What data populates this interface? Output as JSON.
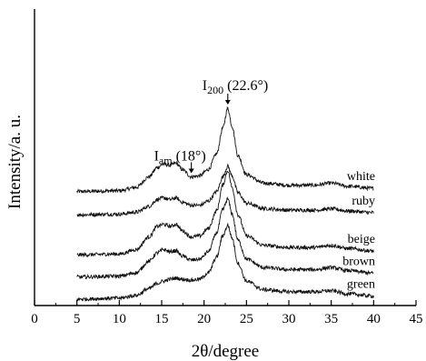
{
  "chart_data": {
    "type": "line",
    "title": "",
    "xlabel": "2θ/degree",
    "ylabel": "Intensity/a. u.",
    "xlim": [
      0,
      45
    ],
    "x_ticks": [
      "0",
      "5",
      "10",
      "15",
      "20",
      "25",
      "30",
      "35",
      "40",
      "45"
    ],
    "grid": false,
    "y_scale": "arbitrary, traces vertically offset",
    "x_range_measured": [
      5,
      40
    ],
    "annotations": [
      {
        "label_main": "I",
        "label_sub": "am",
        "label_suffix": " (18°)",
        "x": 18.5
      },
      {
        "label_main": "I",
        "label_sub": "200",
        "label_suffix": " (22.6°)",
        "x": 22.8
      }
    ],
    "series": [
      {
        "name": "white",
        "baseline": 5.1,
        "points": [
          [
            5,
            0.0
          ],
          [
            10,
            0.04
          ],
          [
            12,
            0.2
          ],
          [
            13.5,
            0.7
          ],
          [
            14.5,
            1.15
          ],
          [
            15.2,
            1.3
          ],
          [
            16,
            1.25
          ],
          [
            16.7,
            1.35
          ],
          [
            17.4,
            1.05
          ],
          [
            18.5,
            0.7
          ],
          [
            19.5,
            0.75
          ],
          [
            20.5,
            1.05
          ],
          [
            21.5,
            1.8
          ],
          [
            22.2,
            3.0
          ],
          [
            22.8,
            3.95
          ],
          [
            23.3,
            3.1
          ],
          [
            24,
            1.7
          ],
          [
            25,
            0.8
          ],
          [
            27,
            0.4
          ],
          [
            30,
            0.3
          ],
          [
            33,
            0.3
          ],
          [
            35,
            0.4
          ],
          [
            37,
            0.25
          ],
          [
            40,
            0.15
          ]
        ]
      },
      {
        "name": "ruby",
        "baseline": 4.0,
        "points": [
          [
            5,
            0.0
          ],
          [
            10,
            0.03
          ],
          [
            12,
            0.12
          ],
          [
            13.5,
            0.4
          ],
          [
            14.5,
            0.72
          ],
          [
            15.2,
            0.8
          ],
          [
            16,
            0.72
          ],
          [
            16.7,
            0.8
          ],
          [
            17.4,
            0.6
          ],
          [
            18.5,
            0.45
          ],
          [
            19.5,
            0.45
          ],
          [
            20.5,
            0.65
          ],
          [
            21.5,
            1.1
          ],
          [
            22.2,
            1.8
          ],
          [
            22.8,
            2.3
          ],
          [
            23.3,
            1.85
          ],
          [
            24,
            1.05
          ],
          [
            25,
            0.55
          ],
          [
            27,
            0.3
          ],
          [
            30,
            0.22
          ],
          [
            33,
            0.22
          ],
          [
            35,
            0.28
          ],
          [
            37,
            0.18
          ],
          [
            40,
            0.1
          ]
        ]
      },
      {
        "name": "beige",
        "baseline": 2.1,
        "points": [
          [
            5,
            0.0
          ],
          [
            10,
            0.04
          ],
          [
            12,
            0.25
          ],
          [
            13.5,
            0.85
          ],
          [
            14.5,
            1.35
          ],
          [
            15.2,
            1.45
          ],
          [
            16,
            1.35
          ],
          [
            16.7,
            1.45
          ],
          [
            17.4,
            1.15
          ],
          [
            18.5,
            0.85
          ],
          [
            19.5,
            0.9
          ],
          [
            20.5,
            1.25
          ],
          [
            21.5,
            2.1
          ],
          [
            22.2,
            3.3
          ],
          [
            22.8,
            4.0
          ],
          [
            23.3,
            3.2
          ],
          [
            24,
            1.9
          ],
          [
            25,
            0.9
          ],
          [
            27,
            0.45
          ],
          [
            30,
            0.35
          ],
          [
            33,
            0.35
          ],
          [
            35,
            0.45
          ],
          [
            37,
            0.3
          ],
          [
            40,
            0.18
          ]
        ]
      },
      {
        "name": "brown",
        "baseline": 1.05,
        "points": [
          [
            5,
            0.0
          ],
          [
            10,
            0.04
          ],
          [
            12,
            0.2
          ],
          [
            13.5,
            0.75
          ],
          [
            14.5,
            1.15
          ],
          [
            15.2,
            1.3
          ],
          [
            16,
            1.2
          ],
          [
            16.7,
            1.25
          ],
          [
            17.4,
            1.0
          ],
          [
            18.5,
            0.8
          ],
          [
            19.5,
            0.85
          ],
          [
            20.5,
            1.2
          ],
          [
            21.5,
            2.1
          ],
          [
            22.2,
            3.2
          ],
          [
            22.8,
            3.7
          ],
          [
            23.3,
            3.0
          ],
          [
            24,
            1.75
          ],
          [
            25,
            0.85
          ],
          [
            27,
            0.45
          ],
          [
            30,
            0.35
          ],
          [
            33,
            0.35
          ],
          [
            35,
            0.45
          ],
          [
            37,
            0.3
          ],
          [
            40,
            0.18
          ]
        ]
      },
      {
        "name": "green",
        "baseline": 0.0,
        "points": [
          [
            5,
            0.0
          ],
          [
            10,
            0.05
          ],
          [
            12,
            0.18
          ],
          [
            13.5,
            0.5
          ],
          [
            14.5,
            0.75
          ],
          [
            15.2,
            0.85
          ],
          [
            16,
            0.95
          ],
          [
            16.7,
            1.0
          ],
          [
            17.4,
            0.95
          ],
          [
            18.5,
            0.9
          ],
          [
            19.5,
            0.95
          ],
          [
            20.5,
            1.25
          ],
          [
            21.5,
            2.0
          ],
          [
            22.2,
            3.0
          ],
          [
            22.8,
            3.5
          ],
          [
            23.3,
            2.9
          ],
          [
            24,
            1.7
          ],
          [
            25,
            0.85
          ],
          [
            27,
            0.45
          ],
          [
            30,
            0.35
          ],
          [
            33,
            0.35
          ],
          [
            35,
            0.4
          ],
          [
            37,
            0.25
          ],
          [
            40,
            0.15
          ]
        ]
      }
    ]
  }
}
